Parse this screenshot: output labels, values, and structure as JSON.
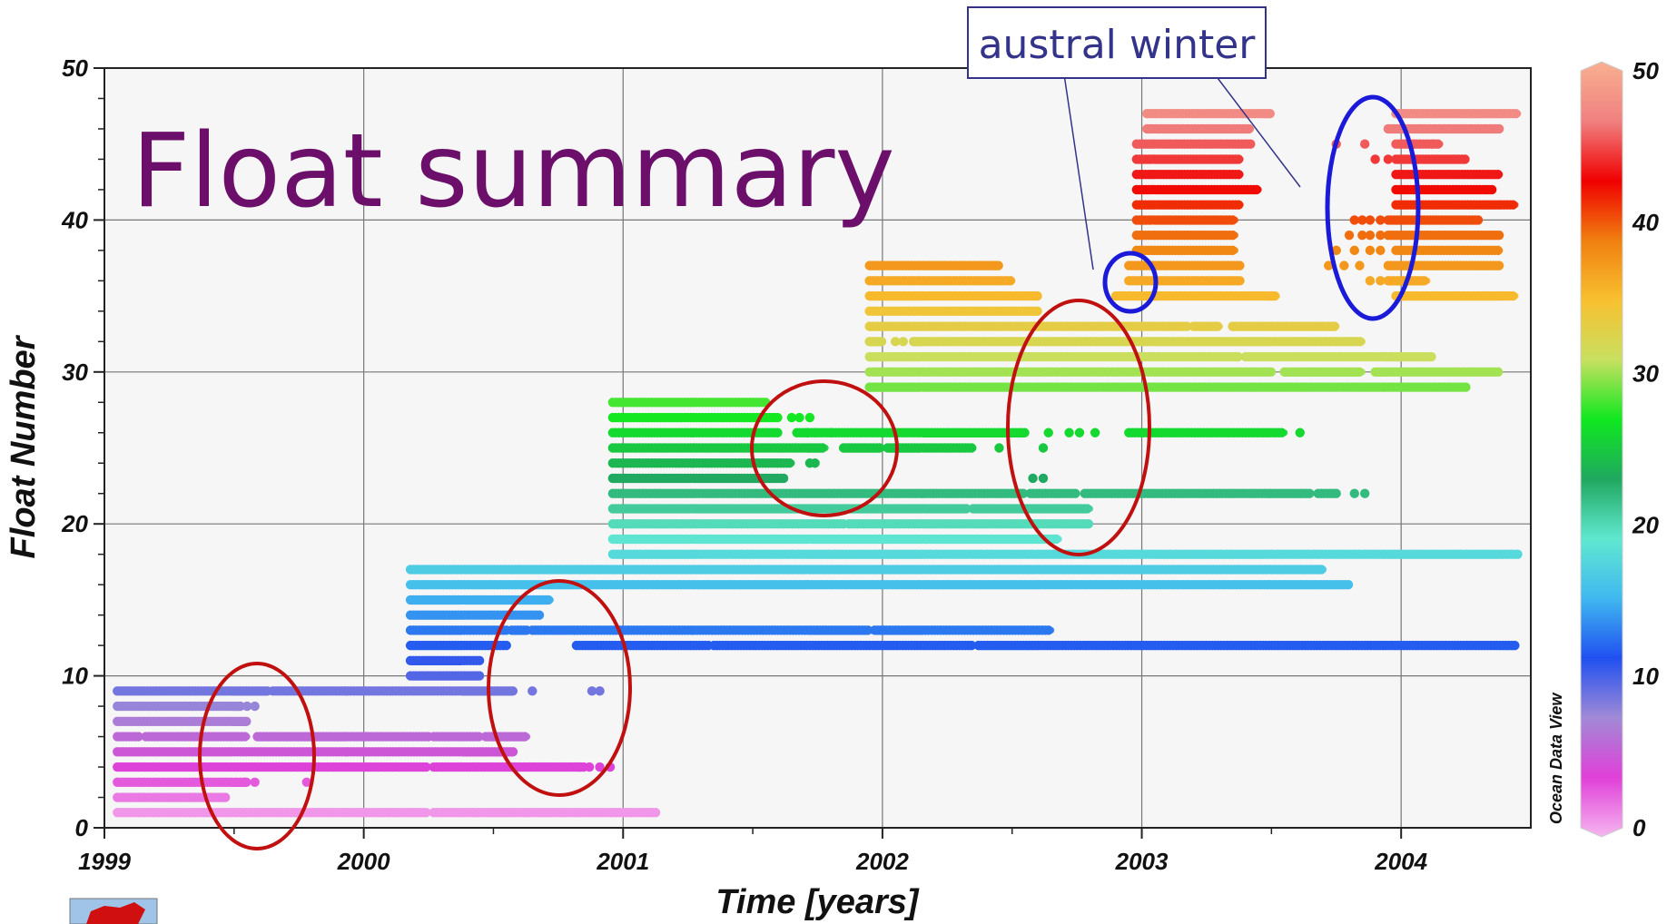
{
  "slide": {
    "title": "Float summary"
  },
  "annotation": {
    "text": "austral winter"
  },
  "colorbar": {
    "ticks": [
      0,
      10,
      20,
      30,
      40,
      50
    ],
    "brand": "Ocean Data View",
    "stops": [
      "#f5b6f0",
      "#e040d8",
      "#a08ad6",
      "#2050f0",
      "#40b8f0",
      "#60e8d0",
      "#20a860",
      "#10e820",
      "#c8e060",
      "#f8c030",
      "#f08010",
      "#f00000",
      "#f08080",
      "#f8b090"
    ]
  },
  "chart_data": {
    "type": "scatter",
    "xlabel": "Time [years]",
    "ylabel": "Float Number",
    "xlim": [
      1999,
      2004.5
    ],
    "ylim": [
      0,
      50
    ],
    "xticks": [
      1999,
      2000,
      2001,
      2002,
      2003,
      2004
    ],
    "yticks": [
      0,
      10,
      20,
      30,
      40,
      50
    ],
    "grid": true,
    "colorbar_range": [
      0,
      50
    ],
    "color_by": "float number",
    "floats": [
      {
        "float": 1,
        "segments": [
          [
            1999.05,
            2000.25
          ],
          [
            2000.27,
            2001.13
          ]
        ]
      },
      {
        "float": 2,
        "segments": [
          [
            1999.05,
            1999.47
          ]
        ]
      },
      {
        "float": 3,
        "segments": [
          [
            1999.05,
            1999.55
          ]
        ],
        "points": [
          1999.54,
          1999.58,
          1999.78
        ]
      },
      {
        "float": 4,
        "segments": [
          [
            1999.05,
            2000.25
          ],
          [
            2000.27,
            2000.85
          ]
        ],
        "points": [
          2000.83,
          2000.87,
          2000.91,
          2000.95
        ]
      },
      {
        "float": 5,
        "segments": [
          [
            1999.05,
            2000.58
          ]
        ]
      },
      {
        "float": 6,
        "segments": [
          [
            1999.05,
            1999.14
          ],
          [
            1999.16,
            1999.55
          ],
          [
            1999.59,
            2000.25
          ],
          [
            2000.27,
            2000.45
          ],
          [
            2000.47,
            2000.63
          ]
        ]
      },
      {
        "float": 7,
        "segments": [
          [
            1999.05,
            1999.55
          ]
        ]
      },
      {
        "float": 8,
        "segments": [
          [
            1999.05,
            1999.53
          ]
        ],
        "points": [
          1999.55,
          1999.58
        ]
      },
      {
        "float": 9,
        "segments": [
          [
            1999.05,
            1999.63
          ],
          [
            1999.65,
            2000.58
          ]
        ],
        "points": [
          2000.65,
          2000.88,
          2000.91
        ]
      },
      {
        "float": 10,
        "segments": [
          [
            2000.18,
            2000.45
          ]
        ]
      },
      {
        "float": 11,
        "segments": [
          [
            2000.18,
            2000.45
          ]
        ]
      },
      {
        "float": 12,
        "segments": [
          [
            2000.18,
            2000.55
          ],
          [
            2000.82,
            2001.33
          ],
          [
            2001.35,
            2002.35
          ],
          [
            2002.37,
            2004.44
          ]
        ]
      },
      {
        "float": 13,
        "segments": [
          [
            2000.18,
            2000.55
          ],
          [
            2000.57,
            2000.63
          ],
          [
            2000.65,
            2001.95
          ],
          [
            2001.97,
            2002.65
          ]
        ]
      },
      {
        "float": 14,
        "segments": [
          [
            2000.18,
            2000.68
          ]
        ]
      },
      {
        "float": 15,
        "segments": [
          [
            2000.18,
            2000.72
          ]
        ]
      },
      {
        "float": 16,
        "segments": [
          [
            2000.18,
            2003.8
          ]
        ]
      },
      {
        "float": 17,
        "segments": [
          [
            2000.18,
            2003.7
          ]
        ]
      },
      {
        "float": 18,
        "segments": [
          [
            2000.96,
            2004.45
          ]
        ]
      },
      {
        "float": 19,
        "segments": [
          [
            2000.96,
            2002.68
          ]
        ]
      },
      {
        "float": 20,
        "segments": [
          [
            2000.96,
            2001.85
          ],
          [
            2001.87,
            2002.8
          ]
        ]
      },
      {
        "float": 21,
        "segments": [
          [
            2000.96,
            2002.33
          ],
          [
            2002.35,
            2002.8
          ]
        ]
      },
      {
        "float": 22,
        "segments": [
          [
            2000.96,
            2002.55
          ],
          [
            2002.57,
            2002.75
          ],
          [
            2002.78,
            2003.65
          ],
          [
            2003.68,
            2003.75
          ]
        ],
        "points": [
          2003.82,
          2003.86
        ]
      },
      {
        "float": 23,
        "segments": [
          [
            2000.96,
            2001.62
          ]
        ],
        "points": [
          2002.58,
          2002.62
        ]
      },
      {
        "float": 24,
        "segments": [
          [
            2000.96,
            2001.65
          ]
        ],
        "points": [
          2001.72,
          2001.74
        ]
      },
      {
        "float": 25,
        "segments": [
          [
            2000.96,
            2001.78
          ],
          [
            2001.85,
            2002.0
          ],
          [
            2002.02,
            2002.35
          ]
        ],
        "points": [
          2002.45,
          2002.62
        ]
      },
      {
        "float": 26,
        "segments": [
          [
            2000.96,
            2001.6
          ],
          [
            2001.67,
            2002.55
          ],
          [
            2002.95,
            2003.55
          ]
        ],
        "points": [
          2001.71,
          2001.74,
          2001.8,
          2002.64,
          2002.72,
          2002.76,
          2002.82,
          2003.61
        ]
      },
      {
        "float": 27,
        "segments": [
          [
            2000.96,
            2001.6
          ]
        ],
        "points": [
          2001.65,
          2001.68,
          2001.72
        ]
      },
      {
        "float": 28,
        "segments": [
          [
            2000.96,
            2001.55
          ]
        ]
      },
      {
        "float": 29,
        "segments": [
          [
            2001.95,
            2004.25
          ]
        ]
      },
      {
        "float": 30,
        "segments": [
          [
            2001.95,
            2003.5
          ],
          [
            2003.55,
            2003.85
          ],
          [
            2003.9,
            2004.38
          ]
        ]
      },
      {
        "float": 31,
        "segments": [
          [
            2001.95,
            2003.38
          ],
          [
            2003.4,
            2004.12
          ]
        ]
      },
      {
        "float": 32,
        "segments": [
          [
            2001.95,
            2002.0
          ]
        ],
        "points": [
          2002.05,
          2002.08
        ],
        "segments2": [
          [
            2002.12,
            2003.85
          ]
        ]
      },
      {
        "float": 33,
        "segments": [
          [
            2001.95,
            2003.18
          ],
          [
            2003.2,
            2003.3
          ],
          [
            2003.35,
            2003.75
          ]
        ]
      },
      {
        "float": 34,
        "segments": [
          [
            2001.95,
            2002.6
          ]
        ]
      },
      {
        "float": 35,
        "segments": [
          [
            2001.95,
            2002.6
          ],
          [
            2002.9,
            2003.52
          ],
          [
            2003.98,
            2004.44
          ]
        ]
      },
      {
        "float": 36,
        "segments": [
          [
            2001.95,
            2002.5
          ],
          [
            2002.95,
            2003.38
          ],
          [
            2003.95,
            2004.1
          ]
        ],
        "points": [
          2003.88,
          2003.92
        ]
      },
      {
        "float": 37,
        "segments": [
          [
            2001.95,
            2002.45
          ],
          [
            2002.95,
            2003.38
          ],
          [
            2003.95,
            2004.38
          ]
        ],
        "points": [
          2003.72,
          2003.78,
          2003.84
        ]
      },
      {
        "float": 38,
        "segments": [
          [
            2002.98,
            2003.36
          ],
          [
            2003.98,
            2004.38
          ]
        ],
        "points": [
          2003.75,
          2003.82,
          2003.88,
          2003.92
        ]
      },
      {
        "float": 39,
        "segments": [
          [
            2002.98,
            2003.36
          ],
          [
            2003.95,
            2004.38
          ]
        ],
        "points": [
          2003.8,
          2003.85,
          2003.88,
          2003.92
        ]
      },
      {
        "float": 40,
        "segments": [
          [
            2002.98,
            2003.36
          ],
          [
            2003.95,
            2004.3
          ]
        ],
        "points": [
          2003.82,
          2003.85,
          2003.88,
          2003.92
        ]
      },
      {
        "float": 41,
        "segments": [
          [
            2002.98,
            2003.38
          ],
          [
            2003.98,
            2004.44
          ]
        ]
      },
      {
        "float": 42,
        "segments": [
          [
            2002.98,
            2003.45
          ],
          [
            2003.98,
            2004.35
          ]
        ]
      },
      {
        "float": 43,
        "segments": [
          [
            2002.98,
            2003.38
          ],
          [
            2003.98,
            2004.38
          ]
        ]
      },
      {
        "float": 44,
        "segments": [
          [
            2002.98,
            2003.38
          ],
          [
            2003.98,
            2004.25
          ]
        ],
        "points": [
          2003.9,
          2003.95
        ]
      },
      {
        "float": 45,
        "segments": [
          [
            2002.98,
            2003.42
          ],
          [
            2003.98,
            2004.15
          ]
        ],
        "points": [
          2003.75,
          2003.86,
          2004.05,
          2004.12
        ]
      },
      {
        "float": 46,
        "segments": [
          [
            2003.02,
            2003.42
          ],
          [
            2003.95,
            2004.38
          ]
        ]
      },
      {
        "float": 47,
        "segments": [
          [
            2003.02,
            2003.5
          ],
          [
            2003.98,
            2004.45
          ]
        ]
      }
    ]
  }
}
